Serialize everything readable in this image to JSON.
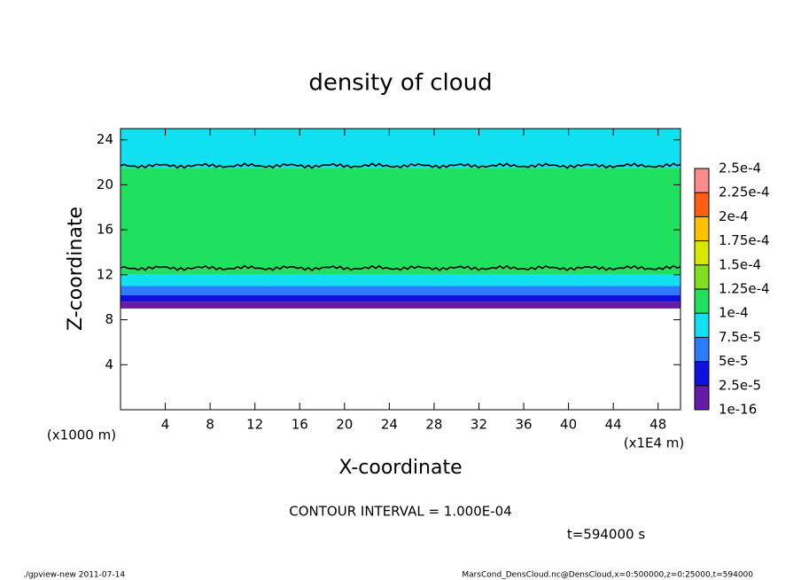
{
  "chart_data": {
    "type": "profile",
    "title": "density of cloud",
    "x_label": "X-coordinate",
    "y_label": "Z-coordinate",
    "x_unit": "(x1E4 m)",
    "y_unit": "(x1000 m)",
    "xlim": [
      0,
      50
    ],
    "xticks": [
      4,
      8,
      12,
      16,
      20,
      24,
      28,
      32,
      36,
      40,
      44,
      48
    ],
    "ylim": [
      0,
      25
    ],
    "yticks": [
      4,
      8,
      12,
      16,
      20,
      24
    ],
    "z_edges": [
      9,
      9.6,
      10.2,
      11,
      12,
      21.5,
      25
    ],
    "values": [
      1e-05,
      3e-05,
      6e-05,
      8.5e-05,
      0.00011,
      9e-05
    ],
    "contour_lines": [
      {
        "level": 0.0001,
        "z": 12.6
      },
      {
        "level": 0.0001,
        "z": 21.7
      }
    ],
    "colorbar": {
      "ticks": [
        {
          "value": 1e-16,
          "label": "1e-16"
        },
        {
          "value": 2.5e-05,
          "label": "2.5e-5"
        },
        {
          "value": 5e-05,
          "label": "5e-5"
        },
        {
          "value": 7.5e-05,
          "label": "7.5e-5"
        },
        {
          "value": 0.0001,
          "label": "1e-4"
        },
        {
          "value": 0.000125,
          "label": "1.25e-4"
        },
        {
          "value": 0.00015,
          "label": "1.5e-4"
        },
        {
          "value": 0.000175,
          "label": "1.75e-4"
        },
        {
          "value": 0.0002,
          "label": "2e-4"
        },
        {
          "value": 0.000225,
          "label": "2.25e-4"
        },
        {
          "value": 0.00025,
          "label": "2.5e-4"
        }
      ],
      "colors": [
        "#6a1aa8",
        "#1010e0",
        "#2c7cff",
        "#10e0f0",
        "#20e060",
        "#80e020",
        "#d8e800",
        "#ffc000",
        "#ff6010",
        "#ff8c8c"
      ]
    },
    "contour_interval": "CONTOUR INTERVAL = 1.000E-04",
    "time": "t=594000 s",
    "footer_left": "./gpview-new   2011-07-14",
    "footer_right": "MarsCond_DensCloud.nc@DensCloud,x=0:500000,z=0:25000,t=594000"
  }
}
